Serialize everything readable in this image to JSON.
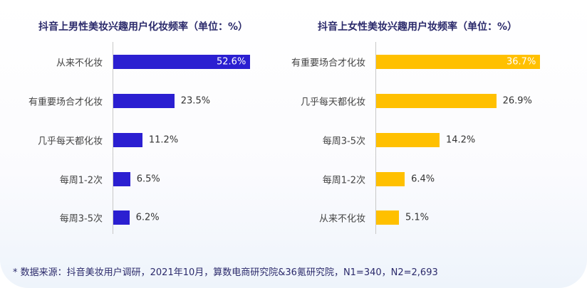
{
  "chart_data": [
    {
      "type": "bar",
      "orientation": "horizontal",
      "title": "抖音上男性美妆兴趣用户化妆频率（单位：%）",
      "categories": [
        "从来不化妆",
        "有重要场合才化妆",
        "几乎每天都化妆",
        "每周1-2次",
        "每周3-5次"
      ],
      "values": [
        52.6,
        23.5,
        11.2,
        6.5,
        6.2
      ],
      "labels": [
        "52.6%",
        "23.5%",
        "11.2%",
        "6.5%",
        "6.2%"
      ],
      "color": "#2b1fd1",
      "grid": false,
      "legend": "none"
    },
    {
      "type": "bar",
      "orientation": "horizontal",
      "title": "抖音上女性美妆兴趣用户妆频率（单位：%）",
      "categories": [
        "有重要场合才化妆",
        "几乎每天都化妆",
        "每周3-5次",
        "每周1-2次",
        "从来不化妆"
      ],
      "values": [
        36.7,
        26.9,
        14.2,
        6.4,
        5.1
      ],
      "labels": [
        "36.7%",
        "26.9%",
        "14.2%",
        "6.4%",
        "5.1%"
      ],
      "color": "#ffc000",
      "grid": false,
      "legend": "none"
    }
  ],
  "footnote": "* 数据来源：抖音美妆用户调研，2021年10月，算数电商研究院&36氪研究院，N1=340，N2=2,693"
}
